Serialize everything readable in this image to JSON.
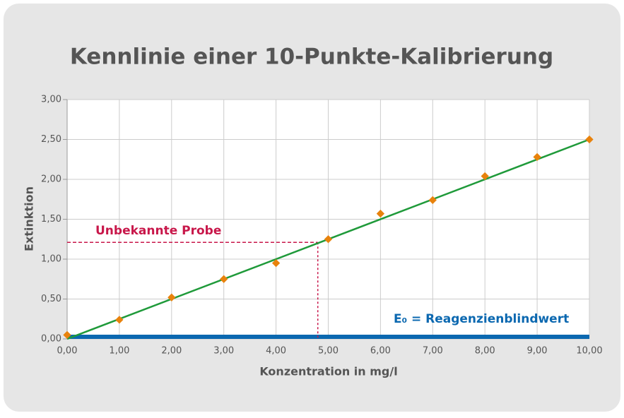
{
  "chart_data": {
    "type": "scatter",
    "title": "Kennlinie einer 10-Punkte-Kalibrierung",
    "x_label": "Konzentration in mg/l",
    "y_label": "Extinktion",
    "x": [
      0,
      1,
      2,
      3,
      4,
      5,
      6,
      7,
      8,
      9,
      10
    ],
    "points": {
      "color": "#e8820c",
      "values": [
        0.05,
        0.24,
        0.52,
        0.75,
        0.95,
        1.25,
        1.57,
        1.74,
        2.04,
        2.28,
        2.5
      ]
    },
    "fit_line": {
      "color": "#1f9a3a",
      "x": [
        0,
        10
      ],
      "y": [
        0,
        2.5
      ]
    },
    "sample": {
      "label": "Unbekannte Probe",
      "x": 4.8,
      "y": 1.21,
      "color": "#c8174a"
    },
    "blank": {
      "label": "E₀ = Reagenzienblindwert",
      "value": 0,
      "color": "#0b68b0"
    },
    "xlim": [
      0,
      10
    ],
    "ylim": [
      0,
      3
    ],
    "xticks": [
      {
        "value": 0,
        "label": "0,00"
      },
      {
        "value": 1,
        "label": "1,00"
      },
      {
        "value": 2,
        "label": "2,00"
      },
      {
        "value": 3,
        "label": "3,00"
      },
      {
        "value": 4,
        "label": "4,00"
      },
      {
        "value": 5,
        "label": "5,00"
      },
      {
        "value": 6,
        "label": "6,00"
      },
      {
        "value": 7,
        "label": "7,00"
      },
      {
        "value": 8,
        "label": "8,00"
      },
      {
        "value": 9,
        "label": "9,00"
      },
      {
        "value": 10,
        "label": "10,00"
      }
    ],
    "yticks": [
      {
        "value": 0,
        "label": "0,00"
      },
      {
        "value": 0.5,
        "label": "0,50"
      },
      {
        "value": 1,
        "label": "1,00"
      },
      {
        "value": 1.5,
        "label": "1,50"
      },
      {
        "value": 2,
        "label": "2,00"
      },
      {
        "value": 2.5,
        "label": "2,50"
      },
      {
        "value": 3,
        "label": "3,00"
      }
    ],
    "grid": true
  }
}
